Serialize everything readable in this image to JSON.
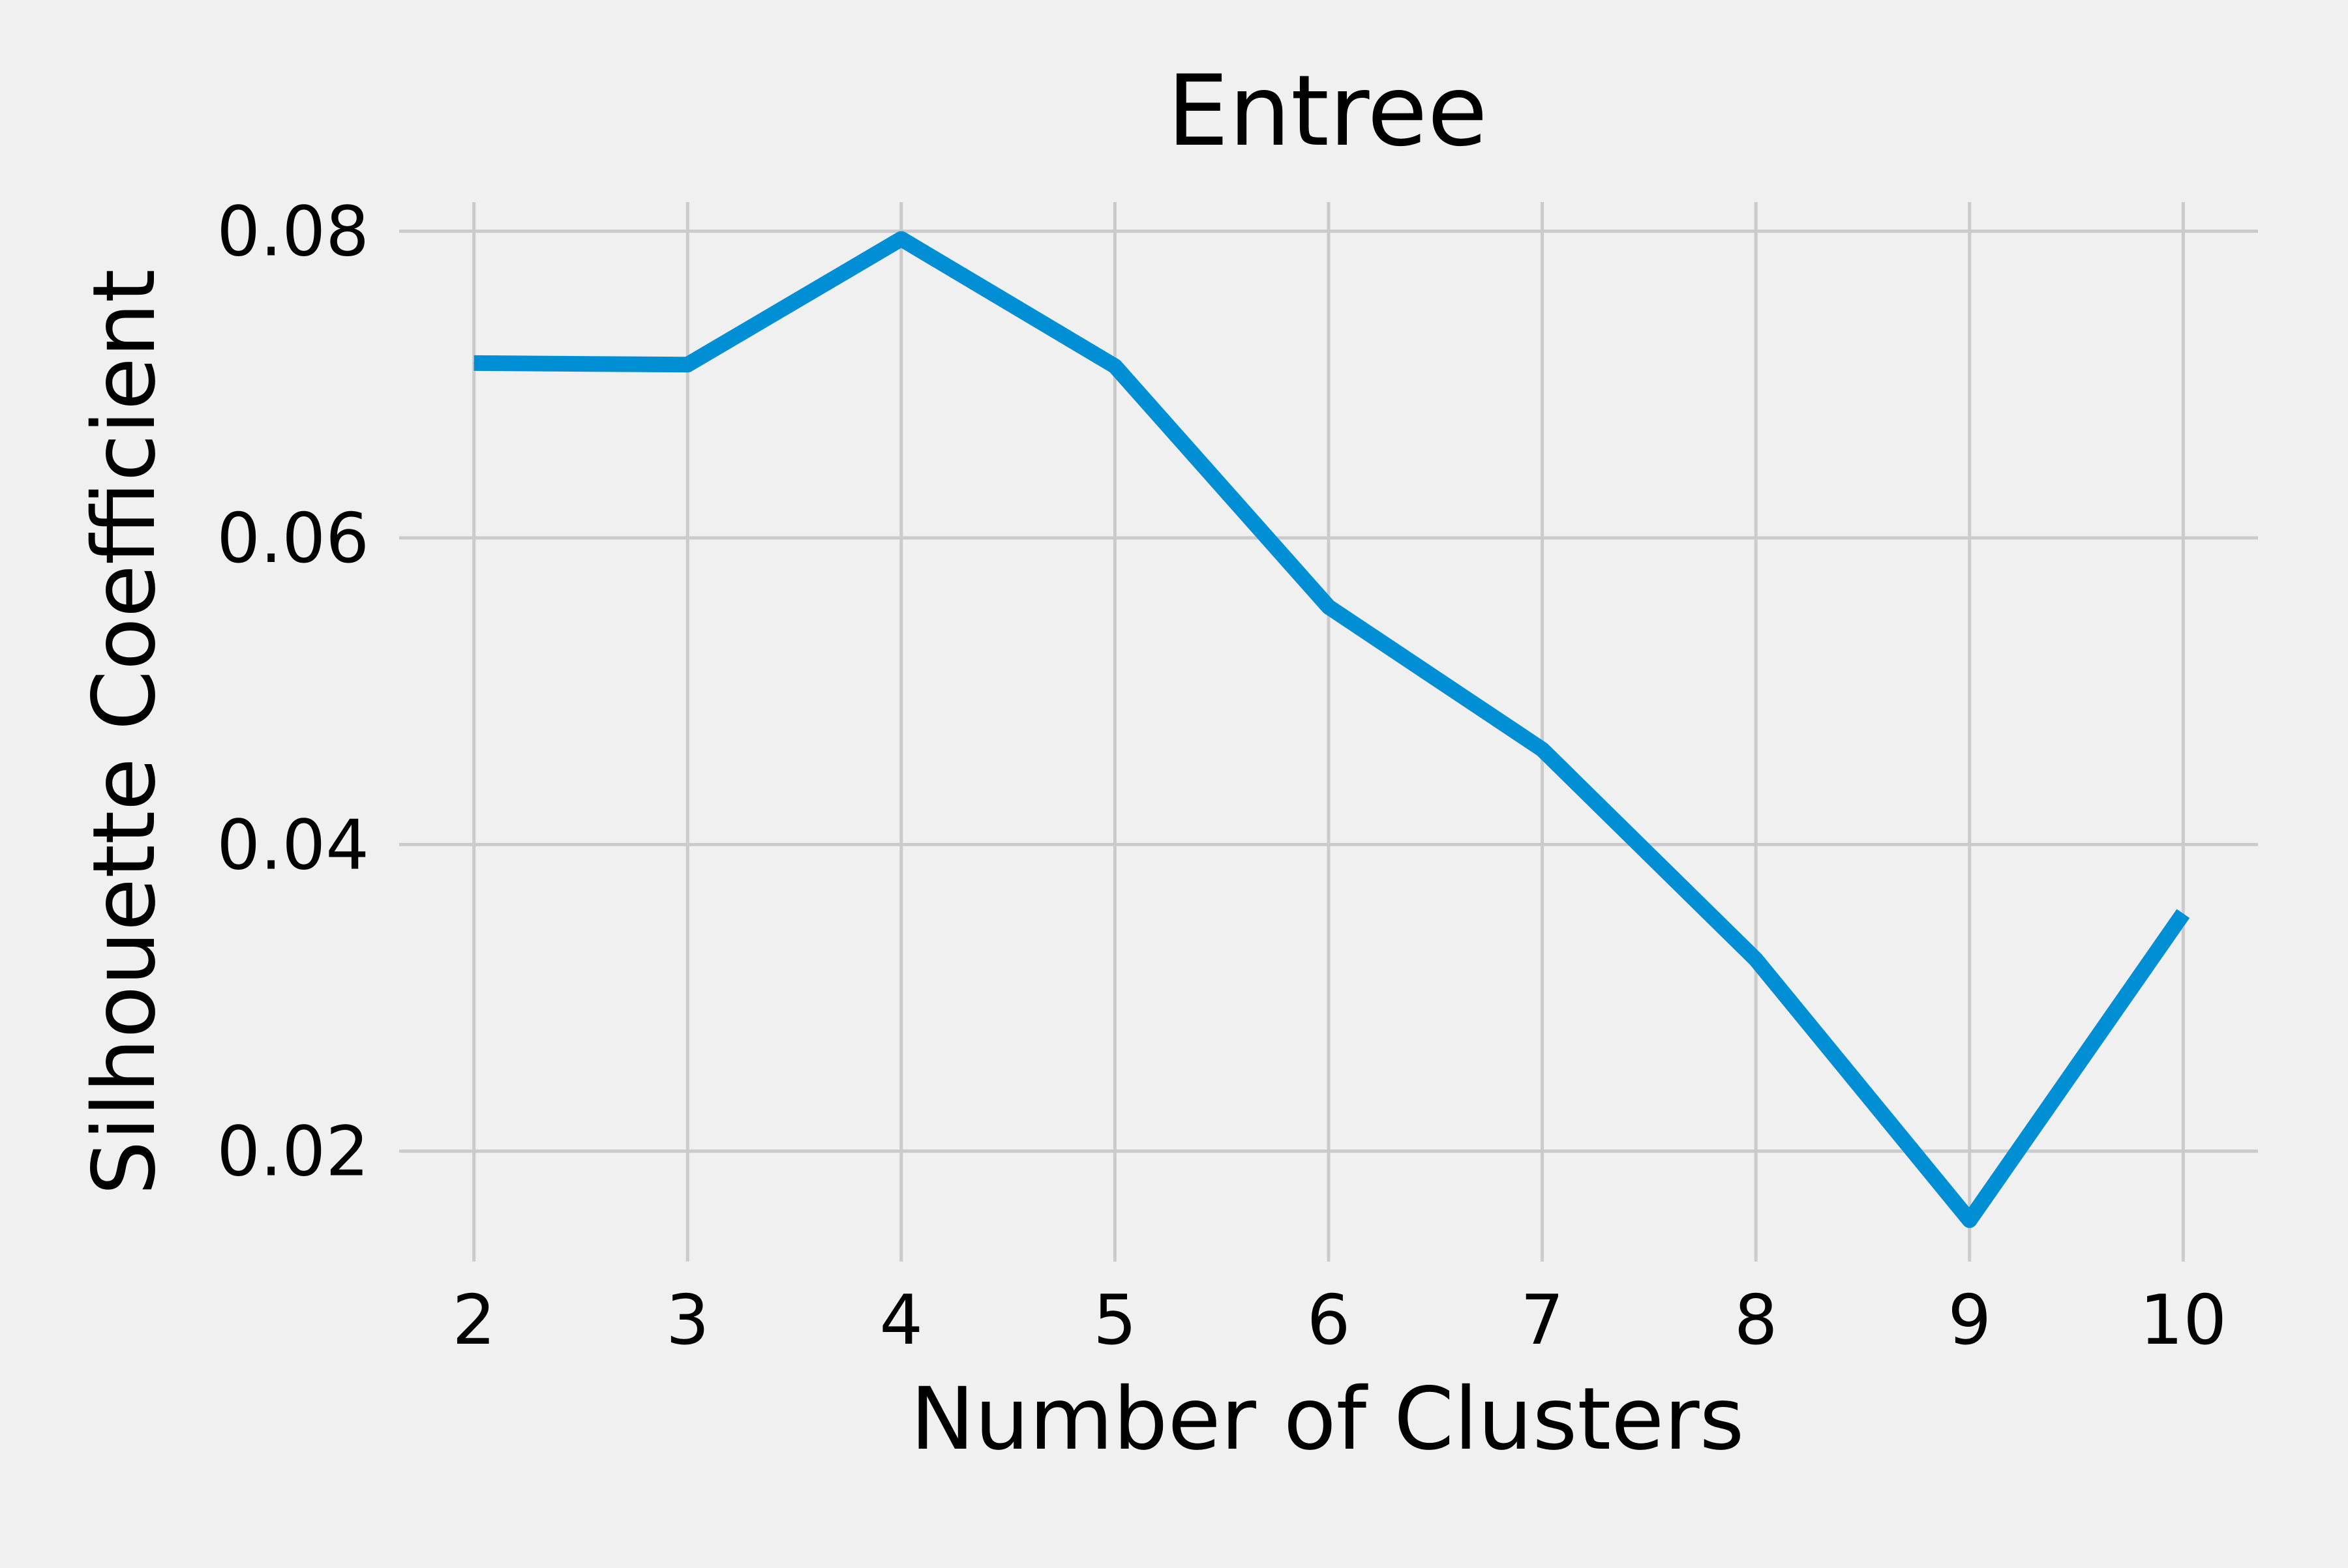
{
  "chart_data": {
    "type": "line",
    "title": "Entree",
    "xlabel": "Number of Clusters",
    "ylabel": "Silhouette Coefficient",
    "x": [
      2,
      3,
      4,
      5,
      6,
      7,
      8,
      9,
      10
    ],
    "series": [
      {
        "values": [
          0.0714,
          0.0713,
          0.0795,
          0.0712,
          0.0555,
          0.0462,
          0.0325,
          0.0155,
          0.0355
        ],
        "color": "#008fd5"
      }
    ],
    "xticks": [
      "2",
      "3",
      "4",
      "5",
      "6",
      "7",
      "8",
      "9",
      "10"
    ],
    "yticks": [
      "0.02",
      "0.04",
      "0.06",
      "0.08"
    ],
    "xlim": [
      1.65,
      10.35
    ],
    "ylim": [
      0.0128,
      0.0819
    ],
    "grid": true,
    "style": {
      "background": "#f0f0f0",
      "grid_color": "#cbcbcb"
    }
  }
}
